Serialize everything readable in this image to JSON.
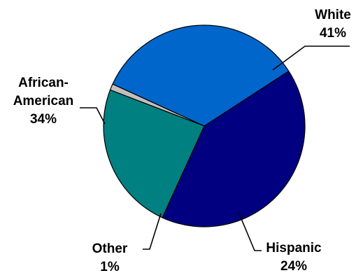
{
  "chart_data": {
    "type": "pie",
    "title": "",
    "slices": [
      {
        "label": [
          "White"
        ],
        "percent_label": "41%",
        "value": 41,
        "color": "#000080"
      },
      {
        "label": [
          "Hispanic"
        ],
        "percent_label": "24%",
        "value": 24,
        "color": "#008080"
      },
      {
        "label": [
          "Other"
        ],
        "percent_label": "1%",
        "value": 1,
        "color": "#C0C0C0"
      },
      {
        "label": [
          "African-",
          "American"
        ],
        "percent_label": "34%",
        "value": 34,
        "color": "#0066CC"
      }
    ],
    "start": "top, clockwise",
    "legend": "none",
    "data_labels": "outside with leader lines"
  }
}
